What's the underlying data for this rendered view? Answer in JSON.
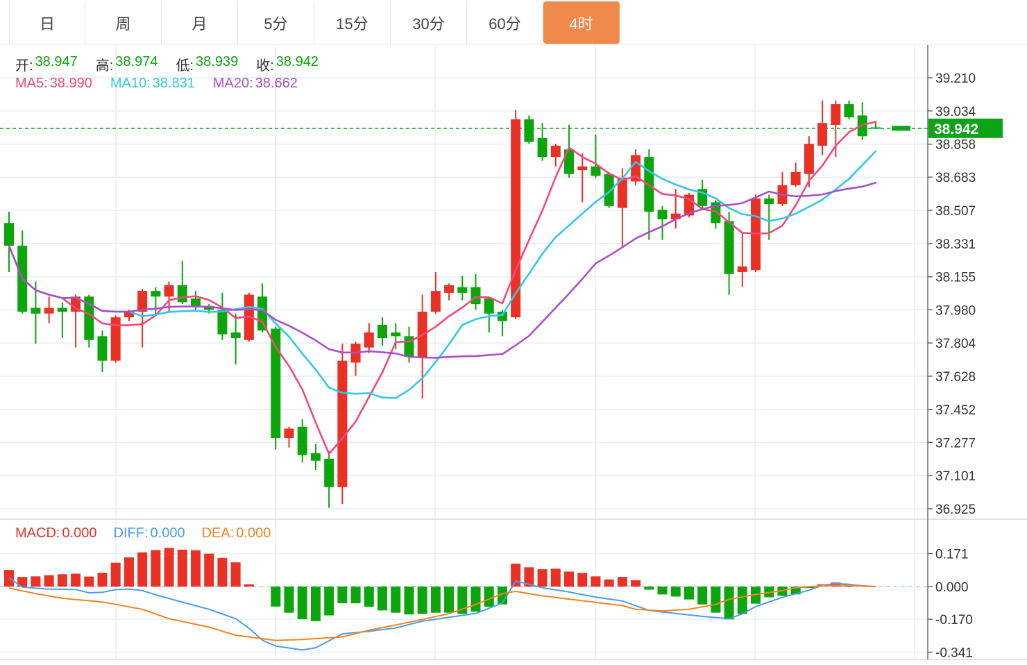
{
  "tabs": {
    "items": [
      "日",
      "周",
      "月",
      "5分",
      "15分",
      "30分",
      "60分",
      "4时"
    ],
    "active": "4时"
  },
  "header": {
    "ohlc": [
      {
        "label": "开:",
        "value": "38.947"
      },
      {
        "label": "高:",
        "value": "38.974"
      },
      {
        "label": "低:",
        "value": "38.939"
      },
      {
        "label": "收:",
        "value": "38.942"
      }
    ],
    "ma": [
      {
        "label": "MA5:",
        "value": "38.990"
      },
      {
        "label": "MA10:",
        "value": "38.831"
      },
      {
        "label": "MA20:",
        "value": "38.662"
      }
    ]
  },
  "macd_legend": [
    {
      "label": "MACD:",
      "value": "0.000"
    },
    {
      "label": "DIFF:",
      "value": "0.000"
    },
    {
      "label": "DEA:",
      "value": "0.000"
    }
  ],
  "colors": {
    "up": "#e93125",
    "down": "#0ca50c",
    "ma5": "#f2477f",
    "ma10": "#33c7e4",
    "ma20": "#ab4fc5",
    "diff": "#4a9ced",
    "dea": "#f5831f",
    "grid": "#e6eef5",
    "axis_line": "#555555",
    "tick_text": "#333333",
    "price_line": "#0fa318",
    "badge": "#0fa318",
    "badge_text": "#ffffff",
    "zero_line": "#a9d0ea",
    "tab_active_bg": "#f08a4c",
    "divider": "#d9d9d9"
  },
  "chart_data": [
    {
      "type": "candlestick",
      "timeframe": "4时",
      "legend_position": "top-left",
      "grid": true,
      "y_ticks": [
        39.21,
        39.034,
        38.858,
        38.683,
        38.507,
        38.331,
        38.155,
        37.98,
        37.804,
        37.628,
        37.452,
        37.277,
        37.101,
        36.925
      ],
      "current_price": 38.942,
      "ma": {
        "windows": [
          5,
          10,
          20
        ],
        "ma5_last": 38.99,
        "ma10_last": 38.831,
        "ma20_last": 38.662
      },
      "ohlc_last": {
        "open": 38.947,
        "high": 38.974,
        "low": 38.939,
        "close": 38.942
      },
      "candles": [
        [
          38.44,
          38.5,
          38.18,
          38.32
        ],
        [
          38.32,
          38.4,
          37.96,
          37.97
        ],
        [
          37.99,
          38.13,
          37.8,
          37.96
        ],
        [
          37.96,
          38.05,
          37.91,
          37.99
        ],
        [
          37.99,
          38.02,
          37.83,
          37.97
        ],
        [
          37.97,
          38.06,
          37.78,
          38.05
        ],
        [
          38.05,
          38.06,
          37.78,
          37.82
        ],
        [
          37.84,
          37.87,
          37.65,
          37.71
        ],
        [
          37.71,
          37.95,
          37.7,
          37.94
        ],
        [
          37.94,
          37.98,
          37.92,
          37.97
        ],
        [
          37.97,
          38.09,
          37.78,
          38.08
        ],
        [
          38.08,
          38.1,
          37.95,
          38.05
        ],
        [
          38.05,
          38.13,
          37.97,
          38.11
        ],
        [
          38.11,
          38.24,
          38.01,
          38.02
        ],
        [
          38.04,
          38.08,
          37.97,
          38.0
        ],
        [
          38.0,
          38.01,
          37.96,
          37.98
        ],
        [
          37.98,
          38.07,
          37.82,
          37.85
        ],
        [
          37.86,
          37.96,
          37.69,
          37.83
        ],
        [
          37.82,
          38.07,
          37.81,
          38.06
        ],
        [
          38.05,
          38.12,
          37.86,
          37.87
        ],
        [
          37.88,
          37.89,
          37.24,
          37.3
        ],
        [
          37.3,
          37.36,
          37.25,
          37.35
        ],
        [
          37.36,
          37.4,
          37.17,
          37.21
        ],
        [
          37.22,
          37.27,
          37.13,
          37.18
        ],
        [
          37.19,
          37.23,
          36.93,
          37.04
        ],
        [
          37.04,
          37.8,
          36.95,
          37.71
        ],
        [
          37.7,
          37.81,
          37.63,
          37.8
        ],
        [
          37.78,
          37.91,
          37.75,
          37.86
        ],
        [
          37.9,
          37.94,
          37.79,
          37.83
        ],
        [
          37.86,
          37.91,
          37.77,
          37.84
        ],
        [
          37.84,
          37.89,
          37.7,
          37.73
        ],
        [
          37.73,
          38.06,
          37.51,
          37.97
        ],
        [
          37.97,
          38.18,
          37.96,
          38.08
        ],
        [
          38.07,
          38.12,
          38.03,
          38.11
        ],
        [
          38.1,
          38.16,
          38.03,
          38.07
        ],
        [
          38.1,
          38.17,
          37.98,
          38.01
        ],
        [
          38.04,
          38.05,
          37.86,
          37.96
        ],
        [
          37.97,
          37.98,
          37.84,
          37.92
        ],
        [
          37.94,
          39.04,
          37.93,
          38.99
        ],
        [
          38.99,
          39.01,
          38.86,
          38.87
        ],
        [
          38.89,
          38.97,
          38.77,
          38.79
        ],
        [
          38.79,
          38.86,
          38.74,
          38.85
        ],
        [
          38.83,
          38.96,
          38.68,
          38.7
        ],
        [
          38.72,
          38.81,
          38.55,
          38.74
        ],
        [
          38.74,
          38.91,
          38.68,
          38.69
        ],
        [
          38.7,
          38.71,
          38.52,
          38.53
        ],
        [
          38.52,
          38.73,
          38.31,
          38.68
        ],
        [
          38.66,
          38.83,
          38.64,
          38.8
        ],
        [
          38.79,
          38.83,
          38.35,
          38.5
        ],
        [
          38.51,
          38.53,
          38.35,
          38.46
        ],
        [
          38.46,
          38.62,
          38.41,
          38.49
        ],
        [
          38.48,
          38.6,
          38.47,
          38.59
        ],
        [
          38.62,
          38.67,
          38.52,
          38.53
        ],
        [
          38.55,
          38.56,
          38.41,
          38.44
        ],
        [
          38.45,
          38.5,
          38.06,
          38.17
        ],
        [
          38.18,
          38.39,
          38.1,
          38.21
        ],
        [
          38.19,
          38.59,
          38.18,
          38.57
        ],
        [
          38.57,
          38.59,
          38.35,
          38.54
        ],
        [
          38.54,
          38.71,
          38.53,
          38.64
        ],
        [
          38.64,
          38.76,
          38.63,
          38.71
        ],
        [
          38.7,
          38.9,
          38.63,
          38.86
        ],
        [
          38.85,
          39.09,
          38.8,
          38.97
        ],
        [
          38.96,
          39.09,
          38.79,
          39.07
        ],
        [
          39.07,
          39.09,
          38.99,
          39.0
        ],
        [
          39.01,
          39.08,
          38.88,
          38.9
        ],
        [
          38.947,
          38.974,
          38.939,
          38.942
        ]
      ]
    },
    {
      "type": "bar",
      "name": "MACD",
      "y_ticks": [
        0.171,
        0.0,
        -0.17,
        -0.341
      ],
      "macd_last": 0.0,
      "diff_last": 0.0,
      "dea_last": 0.0,
      "histogram": [
        0.086,
        0.05,
        0.053,
        0.059,
        0.064,
        0.067,
        0.052,
        0.072,
        0.124,
        0.152,
        0.178,
        0.19,
        0.201,
        0.192,
        0.189,
        0.171,
        0.149,
        0.126,
        0.012,
        0.0,
        -0.104,
        -0.136,
        -0.17,
        -0.18,
        -0.15,
        -0.087,
        -0.087,
        -0.105,
        -0.124,
        -0.136,
        -0.145,
        -0.142,
        -0.136,
        -0.136,
        -0.142,
        -0.13,
        -0.105,
        -0.093,
        0.119,
        0.1,
        0.09,
        0.093,
        0.078,
        0.071,
        0.053,
        0.037,
        0.05,
        0.033,
        -0.016,
        -0.041,
        -0.052,
        -0.067,
        -0.093,
        -0.136,
        -0.171,
        -0.143,
        -0.089,
        -0.056,
        -0.048,
        -0.041,
        -0.008,
        0.012,
        0.021,
        0.012,
        0.005,
        0.0
      ],
      "diff_points": [
        [
          1,
          0.045
        ],
        [
          2,
          -0.003
        ],
        [
          4,
          -0.013
        ],
        [
          6,
          -0.015
        ],
        [
          7,
          -0.033
        ],
        [
          8,
          -0.03
        ],
        [
          9,
          -0.016
        ],
        [
          10,
          -0.013
        ],
        [
          11,
          -0.021
        ],
        [
          12,
          -0.043
        ],
        [
          14,
          -0.081
        ],
        [
          16,
          -0.118
        ],
        [
          18,
          -0.167
        ],
        [
          19,
          -0.217
        ],
        [
          20,
          -0.279
        ],
        [
          21,
          -0.309
        ],
        [
          23,
          -0.33
        ],
        [
          24,
          -0.318
        ],
        [
          26,
          -0.246
        ],
        [
          28,
          -0.233
        ],
        [
          30,
          -0.215
        ],
        [
          32,
          -0.18
        ],
        [
          34,
          -0.16
        ],
        [
          36,
          -0.14
        ],
        [
          38,
          -0.085
        ],
        [
          39,
          0.028
        ],
        [
          40,
          0.012
        ],
        [
          41,
          -0.006
        ],
        [
          43,
          -0.028
        ],
        [
          45,
          -0.055
        ],
        [
          47,
          -0.075
        ],
        [
          49,
          -0.124
        ],
        [
          51,
          -0.14
        ],
        [
          53,
          -0.155
        ],
        [
          55,
          -0.167
        ],
        [
          56,
          -0.142
        ],
        [
          57,
          -0.104
        ],
        [
          59,
          -0.056
        ],
        [
          61,
          -0.019
        ],
        [
          62,
          0.007
        ],
        [
          63,
          0.016
        ],
        [
          64,
          0.012
        ],
        [
          65,
          0.004
        ],
        [
          66,
          0.0
        ]
      ],
      "dea_points": [
        [
          1,
          -0.008
        ],
        [
          3,
          -0.037
        ],
        [
          5,
          -0.061
        ],
        [
          8,
          -0.08
        ],
        [
          11,
          -0.118
        ],
        [
          13,
          -0.167
        ],
        [
          16,
          -0.211
        ],
        [
          18,
          -0.253
        ],
        [
          21,
          -0.28
        ],
        [
          23,
          -0.275
        ],
        [
          26,
          -0.262
        ],
        [
          28,
          -0.227
        ],
        [
          31,
          -0.186
        ],
        [
          34,
          -0.141
        ],
        [
          36,
          -0.093
        ],
        [
          38,
          -0.037
        ],
        [
          39,
          -0.025
        ],
        [
          41,
          -0.048
        ],
        [
          44,
          -0.074
        ],
        [
          47,
          -0.099
        ],
        [
          48,
          -0.118
        ],
        [
          50,
          -0.127
        ],
        [
          52,
          -0.118
        ],
        [
          54,
          -0.093
        ],
        [
          55,
          -0.066
        ],
        [
          57,
          -0.041
        ],
        [
          59,
          -0.021
        ],
        [
          60,
          -0.006
        ],
        [
          62,
          0.004
        ],
        [
          64,
          0.007
        ],
        [
          65,
          0.002
        ],
        [
          66,
          0.0
        ]
      ]
    }
  ]
}
